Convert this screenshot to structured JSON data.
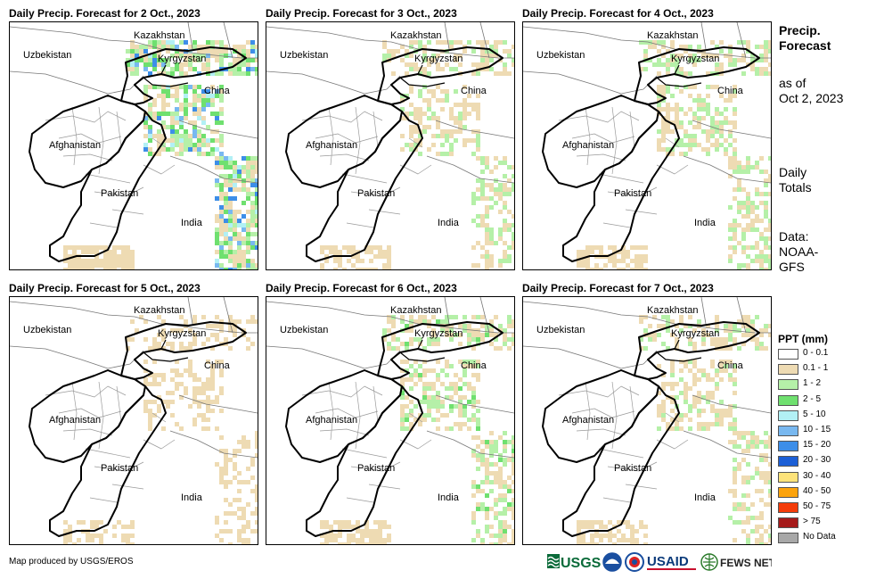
{
  "panels": [
    {
      "title": "Daily Precip. Forecast for 2 Oct., 2023",
      "intensity": 1.0
    },
    {
      "title": "Daily Precip. Forecast for 3 Oct., 2023",
      "intensity": 0.55
    },
    {
      "title": "Daily Precip. Forecast for 4 Oct., 2023",
      "intensity": 0.6
    },
    {
      "title": "Daily Precip. Forecast for 5 Oct., 2023",
      "intensity": 0.3
    },
    {
      "title": "Daily Precip. Forecast for 6 Oct., 2023",
      "intensity": 0.65
    },
    {
      "title": "Daily Precip. Forecast for 7 Oct., 2023",
      "intensity": 0.5
    }
  ],
  "map_labels": {
    "kazakhstan": "Kazakhstan",
    "uzbekistan": "Uzbekistan",
    "kyrgyzstan": "Kyrgyzstan",
    "china": "China",
    "afghanistan": "Afghanistan",
    "pakistan": "Pakistan",
    "india": "India"
  },
  "side": {
    "title_line1": "Precip.",
    "title_line2": "Forecast",
    "asof_line1": "as of",
    "asof_line2": "Oct 2, 2023",
    "daily_line1": "Daily",
    "daily_line2": "Totals",
    "data_line1": "Data:",
    "data_line2": "NOAA-",
    "data_line3": "GFS"
  },
  "legend": {
    "title": "PPT (mm)",
    "items": [
      {
        "label": "0 - 0.1",
        "color": "#ffffff"
      },
      {
        "label": "0.1 - 1",
        "color": "#eedbb3"
      },
      {
        "label": "1 - 2",
        "color": "#b5f0a8"
      },
      {
        "label": "2 - 5",
        "color": "#6fe06f"
      },
      {
        "label": "5 - 10",
        "color": "#b2f0f5"
      },
      {
        "label": "10 - 15",
        "color": "#78b8f0"
      },
      {
        "label": "15 - 20",
        "color": "#3d8ee8"
      },
      {
        "label": "20 - 30",
        "color": "#1c5fd6"
      },
      {
        "label": "30 - 40",
        "color": "#fde37a"
      },
      {
        "label": "40 - 50",
        "color": "#fca30c"
      },
      {
        "label": "50 - 75",
        "color": "#f43c0a"
      },
      {
        "label": "> 75",
        "color": "#a51a1a"
      },
      {
        "label": "No Data",
        "color": "#a8a8a8"
      }
    ]
  },
  "footer": {
    "credit": "Map produced by USGS/EROS"
  },
  "logos": {
    "usgs": "USGS",
    "usaid": "USAID",
    "fewsnet": "FEWS NET"
  }
}
